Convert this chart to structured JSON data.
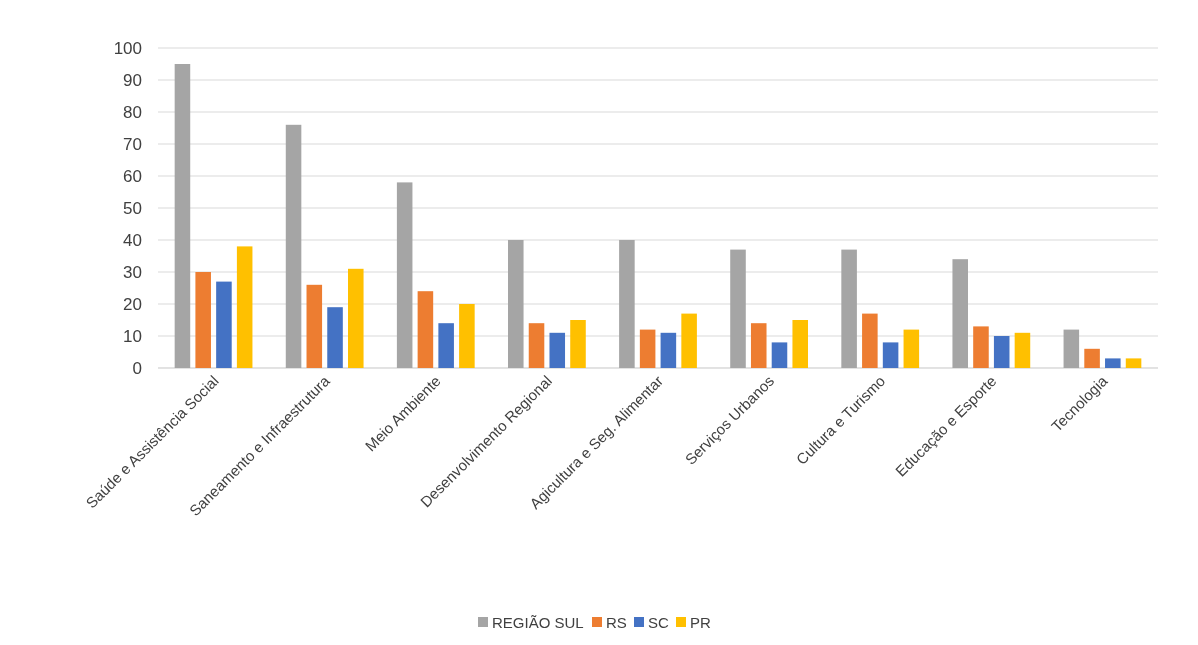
{
  "chart_data": {
    "type": "bar",
    "categories": [
      "Saúde e Assistência Social",
      "Saneamento e Infraestrutura",
      "Meio Ambiente",
      "Desenvolvimento Regional",
      "Agicultura e Seg. Alimentar",
      "Serviços Urbanos",
      "Cultura e Turismo",
      "Educação e Esporte",
      "Tecnologia"
    ],
    "series": [
      {
        "name": "REGIÃO SUL",
        "color": "#a5a5a5",
        "values": [
          95,
          76,
          58,
          40,
          40,
          37,
          37,
          34,
          12
        ]
      },
      {
        "name": "RS",
        "color": "#ed7d31",
        "values": [
          30,
          26,
          24,
          14,
          12,
          14,
          17,
          13,
          6
        ]
      },
      {
        "name": "SC",
        "color": "#4472c4",
        "values": [
          27,
          19,
          14,
          11,
          11,
          8,
          8,
          10,
          3
        ]
      },
      {
        "name": "PR",
        "color": "#ffc000",
        "values": [
          38,
          31,
          20,
          15,
          17,
          15,
          12,
          11,
          3
        ]
      }
    ],
    "ylim": [
      0,
      100
    ],
    "yticks": [
      0,
      10,
      20,
      30,
      40,
      50,
      60,
      70,
      80,
      90,
      100
    ],
    "grid": "y",
    "legend": "bottom"
  }
}
